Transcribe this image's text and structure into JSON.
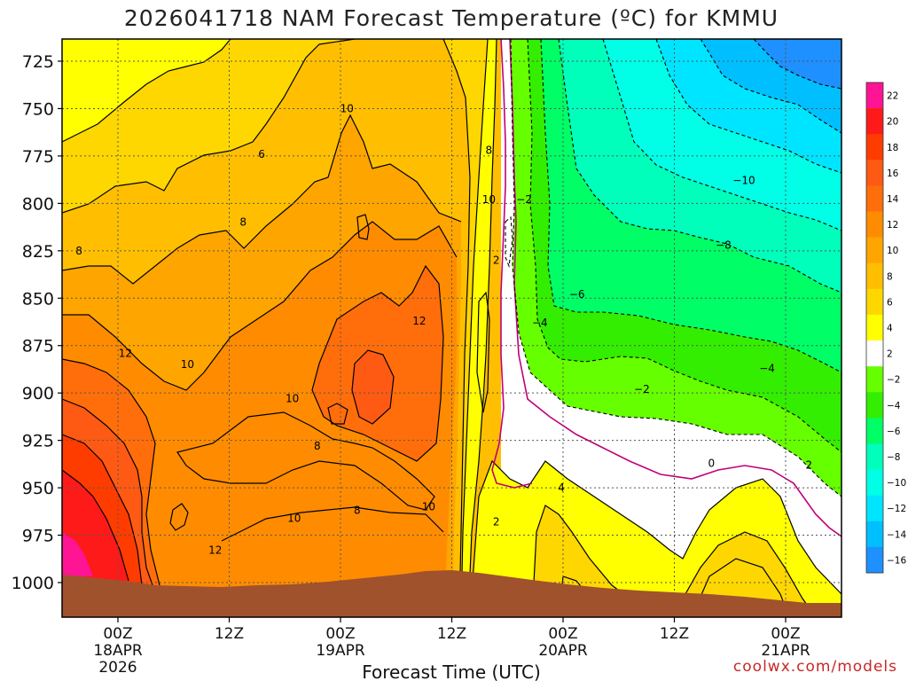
{
  "chart_data": {
    "type": "heatmap",
    "title": "2026041718 NAM Forecast Temperature (ºC) for KMMU",
    "xlabel": "Forecast Time (UTC)",
    "ylabel": "",
    "y_axis": {
      "ticks": [
        725,
        750,
        775,
        800,
        825,
        850,
        875,
        900,
        925,
        950,
        975,
        1000
      ],
      "reversed": true
    },
    "x_ticks": [
      {
        "hour": 6,
        "lines": [
          "00Z",
          "18APR",
          "2026"
        ]
      },
      {
        "hour": 18,
        "lines": [
          "12Z"
        ]
      },
      {
        "hour": 30,
        "lines": [
          "00Z",
          "19APR"
        ]
      },
      {
        "hour": 42,
        "lines": [
          "12Z"
        ]
      },
      {
        "hour": 54,
        "lines": [
          "00Z",
          "20APR"
        ]
      },
      {
        "hour": 66,
        "lines": [
          "12Z"
        ]
      },
      {
        "hour": 78,
        "lines": [
          "00Z",
          "21APR"
        ]
      }
    ],
    "grid": true,
    "colorbar": {
      "placement": "right",
      "levels": [
        "22",
        "20",
        "18",
        "16",
        "14",
        "12",
        "10",
        "8",
        "6",
        "4",
        "2",
        "−2",
        "−4",
        "−6",
        "−8",
        "−10",
        "−12",
        "−14",
        "−16"
      ],
      "colors": [
        "#ff1493",
        "#ff1a1a",
        "#ff3c00",
        "#ff5a14",
        "#ff6e0a",
        "#ff8c00",
        "#ffa500",
        "#ffbf00",
        "#ffd700",
        "#ffff00",
        "#ffffff",
        "#66ff00",
        "#33ee00",
        "#00ff66",
        "#00ffbb",
        "#00ffe6",
        "#00e5ff",
        "#00bfff",
        "#1e90ff"
      ]
    },
    "contour_labels": [
      {
        "text": "10",
        "hour": 30.7,
        "p": 750
      },
      {
        "text": "6",
        "hour": 21.5,
        "p": 774
      },
      {
        "text": "8",
        "hour": 46,
        "p": 772
      },
      {
        "text": "10",
        "hour": 46,
        "p": 798
      },
      {
        "text": "8",
        "hour": 19.5,
        "p": 810
      },
      {
        "text": "8",
        "hour": 1.8,
        "p": 825
      },
      {
        "text": "12",
        "hour": 38.5,
        "p": 862
      },
      {
        "text": "12",
        "hour": 6.8,
        "p": 879
      },
      {
        "text": "10",
        "hour": 13.5,
        "p": 885
      },
      {
        "text": "10",
        "hour": 24.8,
        "p": 903
      },
      {
        "text": "8",
        "hour": 27.5,
        "p": 928
      },
      {
        "text": "10",
        "hour": 25,
        "p": 966
      },
      {
        "text": "8",
        "hour": 31.8,
        "p": 962
      },
      {
        "text": "10",
        "hour": 39.5,
        "p": 960
      },
      {
        "text": "12",
        "hour": 16.5,
        "p": 983
      },
      {
        "text": "2",
        "hour": 46.8,
        "p": 830
      },
      {
        "text": "2",
        "hour": 46.8,
        "p": 968
      },
      {
        "text": "−2",
        "hour": 49.8,
        "p": 798
      },
      {
        "text": "−4",
        "hour": 51.5,
        "p": 863
      },
      {
        "text": "−6",
        "hour": 55.5,
        "p": 848
      },
      {
        "text": "−8",
        "hour": 71.3,
        "p": 822
      },
      {
        "text": "−10",
        "hour": 73.5,
        "p": 788
      },
      {
        "text": "−4",
        "hour": 76,
        "p": 887
      },
      {
        "text": "−2",
        "hour": 62.5,
        "p": 898
      },
      {
        "text": "0",
        "hour": 70,
        "p": 937
      },
      {
        "text": "4",
        "hour": 53.8,
        "p": 950
      },
      {
        "text": "2",
        "hour": 80.5,
        "p": 938
      }
    ]
  },
  "credit": "coolwx.com/models"
}
